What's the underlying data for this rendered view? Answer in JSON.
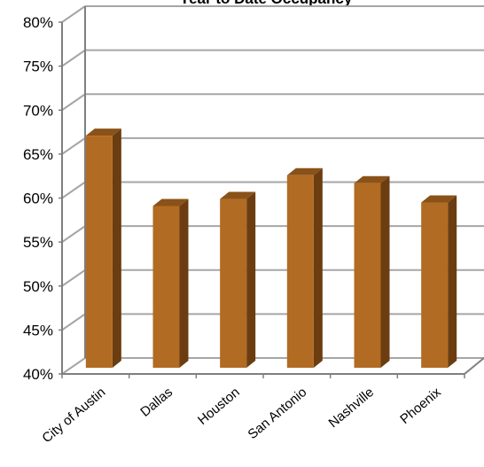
{
  "chart_data": {
    "type": "bar",
    "title": "Year to Date Occupancy",
    "categories": [
      "City of Austin",
      "Dallas",
      "Houston",
      "San Antonio",
      "Nashville",
      "Phoenix"
    ],
    "values": [
      68,
      60,
      60.8,
      63.5,
      62.6,
      60.4
    ],
    "ylim": [
      40,
      80
    ],
    "ytick_labels": [
      "40%",
      "45%",
      "50%",
      "55%",
      "60%",
      "65%",
      "70%",
      "75%",
      "80%"
    ],
    "ytick_values": [
      40,
      45,
      50,
      55,
      60,
      65,
      70,
      75,
      80
    ],
    "grid": true,
    "legend": "none",
    "colors": {
      "bar_front": "#b26b22",
      "bar_side": "#6b3d10",
      "bar_top": "#8a5218",
      "grid": "#a6a6a6",
      "axis": "#7f7f7f"
    }
  }
}
